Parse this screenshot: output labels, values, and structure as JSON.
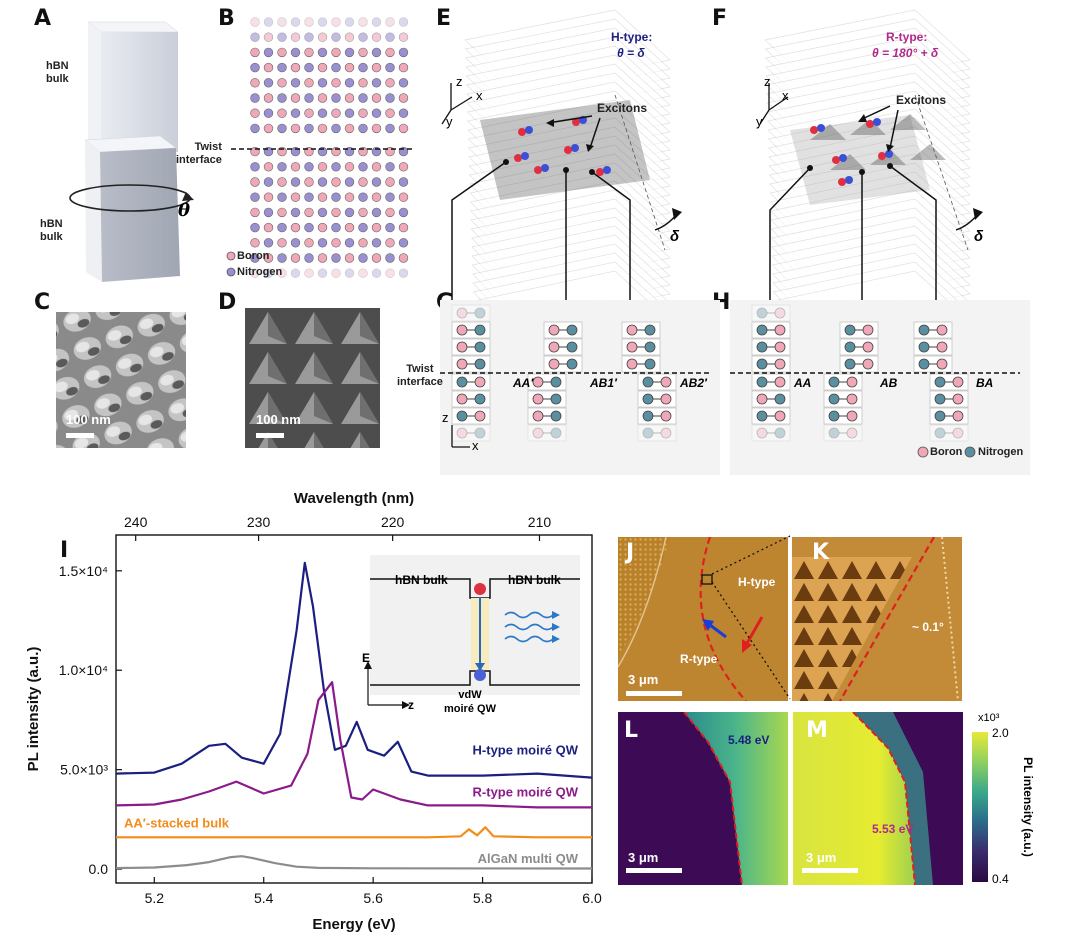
{
  "panels": {
    "A": "A",
    "B": "B",
    "C": "C",
    "D": "D",
    "E": "E",
    "F": "F",
    "G": "G",
    "H": "H",
    "I": "I",
    "J": "J",
    "K": "K",
    "L": "L",
    "M": "M"
  },
  "panel_a": {
    "top_label": "hBN\nbulk",
    "bottom_label": "hBN\nbulk",
    "theta": "θ"
  },
  "panel_b": {
    "twist_label": "Twist\ninterface",
    "legend": [
      "Boron",
      "Nitrogen"
    ]
  },
  "panel_c": {
    "scale": "100 nm"
  },
  "panel_d": {
    "scale": "100 nm"
  },
  "panel_e": {
    "type_title": "H-type:",
    "type_eq": "θ = δ",
    "excitons": "Excitons",
    "delta": "δ",
    "axes": [
      "z",
      "x",
      "y"
    ]
  },
  "panel_f": {
    "type_title": "R-type:",
    "type_eq": "θ = 180° + δ",
    "excitons": "Excitons",
    "delta": "δ",
    "axes": [
      "z",
      "x",
      "y"
    ]
  },
  "panel_g": {
    "twist_label": "Twist\ninterface",
    "stackings": [
      "AA′",
      "AB1′",
      "AB2′"
    ],
    "axes": [
      "z",
      "x"
    ]
  },
  "panel_h": {
    "stackings": [
      "AA",
      "AB",
      "BA"
    ],
    "legend": [
      "Boron",
      "Nitrogen"
    ]
  },
  "panel_i": {
    "top_axis_label": "Wavelength (nm)",
    "bottom_axis_label": "Energy (eV)",
    "y_axis_label": "PL intensity (a.u.)",
    "inset": {
      "left_label": "hBN bulk",
      "right_label": "hBN bulk",
      "bottom_label": "vdW\nmoiré QW",
      "axis_e": "E",
      "axis_z": "z"
    }
  },
  "panel_j": {
    "h_label": "H-type",
    "r_label": "R-type",
    "scale": "3 μm"
  },
  "panel_k": {
    "angle": "~ 0.1°"
  },
  "panel_l": {
    "energy": "5.48 eV",
    "scale": "3 μm"
  },
  "panel_m": {
    "energy": "5.53 eV",
    "scale": "3 μm"
  },
  "colorbar": {
    "exponent": "x10³",
    "max": "2.0",
    "min": "0.4",
    "label": "PL intensity  (a.u.)"
  },
  "colors": {
    "h_type": "#1b1f80",
    "r_type": "#8b1a8b",
    "aa_bulk": "#f28c1a",
    "algan": "#8c8c8c",
    "boron": "#f0a8b8",
    "nitrogen": "#5a8fa0"
  },
  "chart_data": {
    "type": "line",
    "xlabel": "Energy (eV)",
    "ylabel": "PL intensity (a.u.)",
    "x2label": "Wavelength (nm)",
    "xlim": [
      5.13,
      6.0
    ],
    "ylim": [
      -700,
      16800
    ],
    "xticks": [
      5.2,
      5.4,
      5.6,
      5.8,
      6.0
    ],
    "xtick_labels": [
      "5.2",
      "5.4",
      "5.6",
      "5.8",
      "6.0"
    ],
    "yticks": [
      0,
      5000,
      10000,
      15000
    ],
    "ytick_labels": [
      "0.0",
      "5.0×10³",
      "1.0×10⁴",
      "1.5×10⁴"
    ],
    "wavelength_ticks": [
      240,
      230,
      220,
      210
    ],
    "series": [
      {
        "name": "H-type moiré QW",
        "color": "#1b1f80",
        "x": [
          5.13,
          5.2,
          5.25,
          5.3,
          5.33,
          5.36,
          5.4,
          5.43,
          5.46,
          5.475,
          5.49,
          5.51,
          5.53,
          5.55,
          5.57,
          5.59,
          5.62,
          5.645,
          5.67,
          5.7,
          5.8,
          5.9,
          6.0
        ],
        "y": [
          4800,
          4850,
          5300,
          6200,
          6300,
          5600,
          5300,
          6800,
          12000,
          15400,
          13200,
          9000,
          6000,
          6200,
          7400,
          6000,
          5700,
          6400,
          4900,
          4700,
          4700,
          4800,
          4600
        ]
      },
      {
        "name": "R-type moiré QW",
        "color": "#8b1a8b",
        "x": [
          5.13,
          5.2,
          5.25,
          5.3,
          5.35,
          5.4,
          5.45,
          5.48,
          5.5,
          5.525,
          5.54,
          5.56,
          5.58,
          5.6,
          5.65,
          5.7,
          5.8,
          5.9,
          6.0
        ],
        "y": [
          3200,
          3250,
          3500,
          3900,
          4400,
          3800,
          4200,
          5800,
          8500,
          9400,
          6500,
          3600,
          3500,
          4000,
          3500,
          3200,
          3200,
          3100,
          3100
        ]
      },
      {
        "name": "AA′-stacked bulk",
        "color": "#f28c1a",
        "x": [
          5.13,
          5.5,
          5.7,
          5.76,
          5.775,
          5.79,
          5.805,
          5.82,
          5.9,
          6.0
        ],
        "y": [
          1600,
          1600,
          1600,
          1650,
          2000,
          1700,
          2100,
          1650,
          1600,
          1600
        ]
      },
      {
        "name": "AlGaN multi QW",
        "color": "#8c8c8c",
        "x": [
          5.13,
          5.2,
          5.26,
          5.3,
          5.34,
          5.36,
          5.38,
          5.42,
          5.46,
          5.5,
          5.6,
          6.0
        ],
        "y": [
          50,
          80,
          200,
          350,
          600,
          650,
          550,
          300,
          120,
          60,
          40,
          30
        ]
      }
    ]
  }
}
